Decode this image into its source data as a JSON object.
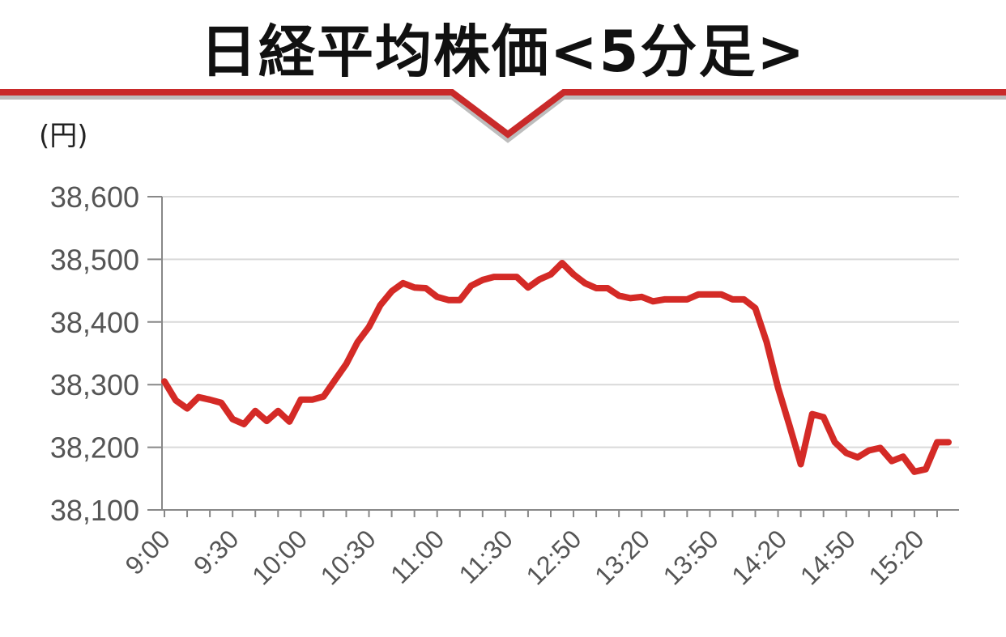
{
  "title": "日経平均株価<5分足>",
  "unit": "(円)",
  "colors": {
    "line": "#d42a26",
    "accent": "#c92a2a",
    "grid": "#d9d9d9",
    "axis": "#888888"
  },
  "chart_data": {
    "type": "line",
    "title": "日経平均株価<5分足>",
    "ylabel": "(円)",
    "ylim": [
      38100,
      38600
    ],
    "yticks": [
      "38,100",
      "38,200",
      "38,300",
      "38,400",
      "38,500",
      "38,600"
    ],
    "grid": true,
    "x_tick_labels": [
      "9:00",
      "9:30",
      "10:00",
      "10:30",
      "11:00",
      "11:30",
      "12:50",
      "13:20",
      "13:50",
      "14:20",
      "14:50",
      "15:20"
    ],
    "series": [
      {
        "values": [
          38305,
          38275,
          38262,
          38280,
          38276,
          38271,
          38245,
          38237,
          38258,
          38242,
          38258,
          38241,
          38276,
          38276,
          38281,
          38307,
          38333,
          38368,
          38392,
          38427,
          38449,
          38462,
          38455,
          38454,
          38440,
          38435,
          38435,
          38458,
          38467,
          38472,
          38472,
          38472,
          38455,
          38468,
          38476,
          38494,
          38476,
          38462,
          38454,
          38454,
          38442,
          38438,
          38440,
          38433,
          38436,
          38436,
          38436,
          38444,
          38444,
          38444,
          38436,
          38436,
          38422,
          38368,
          38295,
          38235,
          38173,
          38253,
          38248,
          38208,
          38191,
          38184,
          38195,
          38199,
          38178,
          38185,
          38161,
          38165,
          38208,
          38208
        ]
      }
    ]
  }
}
